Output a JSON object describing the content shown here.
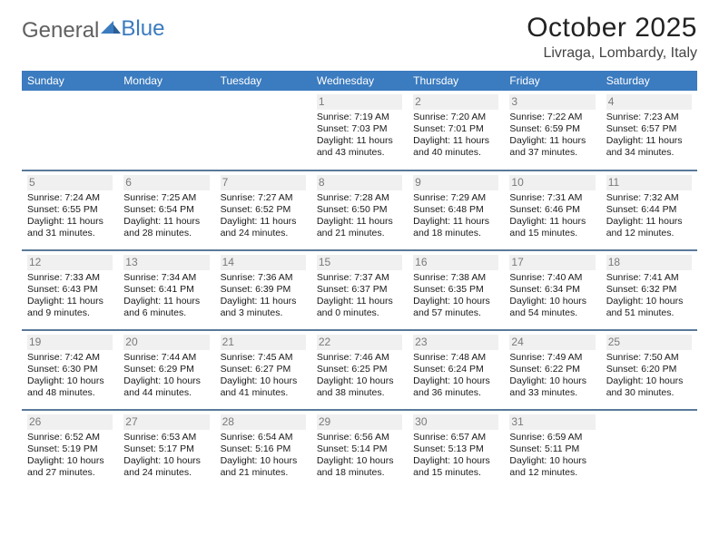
{
  "brand": {
    "part1": "General",
    "part2": "Blue"
  },
  "title": "October 2025",
  "location": "Livraga, Lombardy, Italy",
  "colors": {
    "header_bg": "#3b7bbf",
    "header_text": "#ffffff",
    "border": "#5a7a9a",
    "daynum": "#7a7a7a",
    "daynum_bg": "#f0f0f0",
    "text": "#1a1a1a",
    "title": "#222222"
  },
  "typography": {
    "base_pt": 10.5,
    "title_pt": 30,
    "location_pt": 16,
    "dayhead_pt": 12
  },
  "days": [
    "Sunday",
    "Monday",
    "Tuesday",
    "Wednesday",
    "Thursday",
    "Friday",
    "Saturday"
  ],
  "weeks": [
    [
      {
        "n": "",
        "sr": "",
        "ss": "",
        "dl": ""
      },
      {
        "n": "",
        "sr": "",
        "ss": "",
        "dl": ""
      },
      {
        "n": "",
        "sr": "",
        "ss": "",
        "dl": ""
      },
      {
        "n": "1",
        "sr": "Sunrise: 7:19 AM",
        "ss": "Sunset: 7:03 PM",
        "dl": "Daylight: 11 hours and 43 minutes."
      },
      {
        "n": "2",
        "sr": "Sunrise: 7:20 AM",
        "ss": "Sunset: 7:01 PM",
        "dl": "Daylight: 11 hours and 40 minutes."
      },
      {
        "n": "3",
        "sr": "Sunrise: 7:22 AM",
        "ss": "Sunset: 6:59 PM",
        "dl": "Daylight: 11 hours and 37 minutes."
      },
      {
        "n": "4",
        "sr": "Sunrise: 7:23 AM",
        "ss": "Sunset: 6:57 PM",
        "dl": "Daylight: 11 hours and 34 minutes."
      }
    ],
    [
      {
        "n": "5",
        "sr": "Sunrise: 7:24 AM",
        "ss": "Sunset: 6:55 PM",
        "dl": "Daylight: 11 hours and 31 minutes."
      },
      {
        "n": "6",
        "sr": "Sunrise: 7:25 AM",
        "ss": "Sunset: 6:54 PM",
        "dl": "Daylight: 11 hours and 28 minutes."
      },
      {
        "n": "7",
        "sr": "Sunrise: 7:27 AM",
        "ss": "Sunset: 6:52 PM",
        "dl": "Daylight: 11 hours and 24 minutes."
      },
      {
        "n": "8",
        "sr": "Sunrise: 7:28 AM",
        "ss": "Sunset: 6:50 PM",
        "dl": "Daylight: 11 hours and 21 minutes."
      },
      {
        "n": "9",
        "sr": "Sunrise: 7:29 AM",
        "ss": "Sunset: 6:48 PM",
        "dl": "Daylight: 11 hours and 18 minutes."
      },
      {
        "n": "10",
        "sr": "Sunrise: 7:31 AM",
        "ss": "Sunset: 6:46 PM",
        "dl": "Daylight: 11 hours and 15 minutes."
      },
      {
        "n": "11",
        "sr": "Sunrise: 7:32 AM",
        "ss": "Sunset: 6:44 PM",
        "dl": "Daylight: 11 hours and 12 minutes."
      }
    ],
    [
      {
        "n": "12",
        "sr": "Sunrise: 7:33 AM",
        "ss": "Sunset: 6:43 PM",
        "dl": "Daylight: 11 hours and 9 minutes."
      },
      {
        "n": "13",
        "sr": "Sunrise: 7:34 AM",
        "ss": "Sunset: 6:41 PM",
        "dl": "Daylight: 11 hours and 6 minutes."
      },
      {
        "n": "14",
        "sr": "Sunrise: 7:36 AM",
        "ss": "Sunset: 6:39 PM",
        "dl": "Daylight: 11 hours and 3 minutes."
      },
      {
        "n": "15",
        "sr": "Sunrise: 7:37 AM",
        "ss": "Sunset: 6:37 PM",
        "dl": "Daylight: 11 hours and 0 minutes."
      },
      {
        "n": "16",
        "sr": "Sunrise: 7:38 AM",
        "ss": "Sunset: 6:35 PM",
        "dl": "Daylight: 10 hours and 57 minutes."
      },
      {
        "n": "17",
        "sr": "Sunrise: 7:40 AM",
        "ss": "Sunset: 6:34 PM",
        "dl": "Daylight: 10 hours and 54 minutes."
      },
      {
        "n": "18",
        "sr": "Sunrise: 7:41 AM",
        "ss": "Sunset: 6:32 PM",
        "dl": "Daylight: 10 hours and 51 minutes."
      }
    ],
    [
      {
        "n": "19",
        "sr": "Sunrise: 7:42 AM",
        "ss": "Sunset: 6:30 PM",
        "dl": "Daylight: 10 hours and 48 minutes."
      },
      {
        "n": "20",
        "sr": "Sunrise: 7:44 AM",
        "ss": "Sunset: 6:29 PM",
        "dl": "Daylight: 10 hours and 44 minutes."
      },
      {
        "n": "21",
        "sr": "Sunrise: 7:45 AM",
        "ss": "Sunset: 6:27 PM",
        "dl": "Daylight: 10 hours and 41 minutes."
      },
      {
        "n": "22",
        "sr": "Sunrise: 7:46 AM",
        "ss": "Sunset: 6:25 PM",
        "dl": "Daylight: 10 hours and 38 minutes."
      },
      {
        "n": "23",
        "sr": "Sunrise: 7:48 AM",
        "ss": "Sunset: 6:24 PM",
        "dl": "Daylight: 10 hours and 36 minutes."
      },
      {
        "n": "24",
        "sr": "Sunrise: 7:49 AM",
        "ss": "Sunset: 6:22 PM",
        "dl": "Daylight: 10 hours and 33 minutes."
      },
      {
        "n": "25",
        "sr": "Sunrise: 7:50 AM",
        "ss": "Sunset: 6:20 PM",
        "dl": "Daylight: 10 hours and 30 minutes."
      }
    ],
    [
      {
        "n": "26",
        "sr": "Sunrise: 6:52 AM",
        "ss": "Sunset: 5:19 PM",
        "dl": "Daylight: 10 hours and 27 minutes."
      },
      {
        "n": "27",
        "sr": "Sunrise: 6:53 AM",
        "ss": "Sunset: 5:17 PM",
        "dl": "Daylight: 10 hours and 24 minutes."
      },
      {
        "n": "28",
        "sr": "Sunrise: 6:54 AM",
        "ss": "Sunset: 5:16 PM",
        "dl": "Daylight: 10 hours and 21 minutes."
      },
      {
        "n": "29",
        "sr": "Sunrise: 6:56 AM",
        "ss": "Sunset: 5:14 PM",
        "dl": "Daylight: 10 hours and 18 minutes."
      },
      {
        "n": "30",
        "sr": "Sunrise: 6:57 AM",
        "ss": "Sunset: 5:13 PM",
        "dl": "Daylight: 10 hours and 15 minutes."
      },
      {
        "n": "31",
        "sr": "Sunrise: 6:59 AM",
        "ss": "Sunset: 5:11 PM",
        "dl": "Daylight: 10 hours and 12 minutes."
      },
      {
        "n": "",
        "sr": "",
        "ss": "",
        "dl": ""
      }
    ]
  ]
}
